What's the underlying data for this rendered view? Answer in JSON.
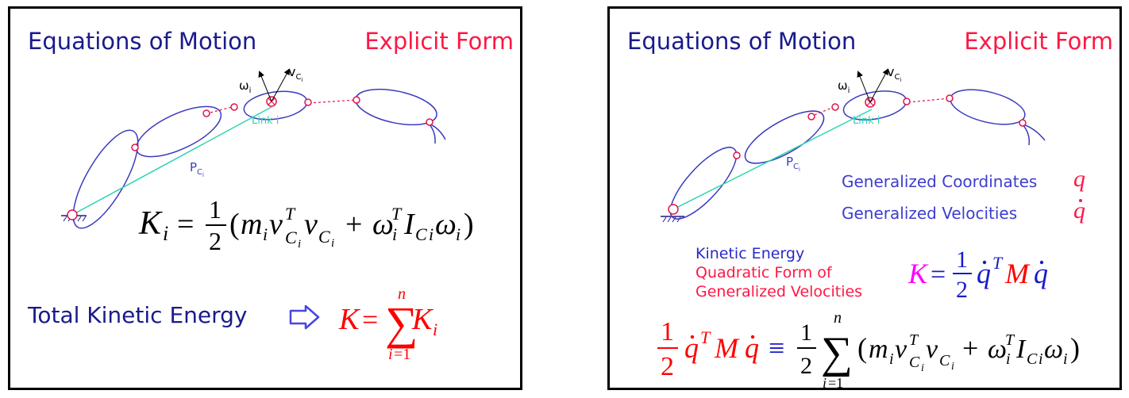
{
  "left_slide": {
    "title": "Equations of Motion",
    "subtitle": "Explicit Form",
    "omega_label": "ω",
    "omega_sub": "i",
    "v_label": "v",
    "v_sub": "C",
    "v_subsub": "i",
    "link_label": "Link i",
    "p_label": "P",
    "p_sub": "C",
    "p_subsub": "i",
    "total_ke_label": "Total Kinetic Energy"
  },
  "right_slide": {
    "title": "Equations of Motion",
    "subtitle": "Explicit Form",
    "omega_label": "ω",
    "omega_sub": "i",
    "v_label": "v",
    "v_sub": "C",
    "v_subsub": "i",
    "link_label": "Link i",
    "p_label": "P",
    "p_sub": "C",
    "p_subsub": "i",
    "gen_coords_label": "Generalized Coordinates",
    "gen_vel_label": "Generalized Velocities",
    "ke_label": "Kinetic Energy",
    "quad_label_1": "Quadratic Form of",
    "quad_label_2": "Generalized Velocities"
  },
  "colors": {
    "title": "#1a1a8c",
    "subtitle": "#ff1744",
    "link_outline": "#3b3bbf",
    "pc_line": "#2fd4b0",
    "joint": "#e0144c",
    "equation_black": "#000000",
    "equation_red": "#ff0000",
    "equation_blue": "#1a1acc",
    "equation_magenta": "#ff00ff",
    "arrow": "#3b4fe0"
  }
}
